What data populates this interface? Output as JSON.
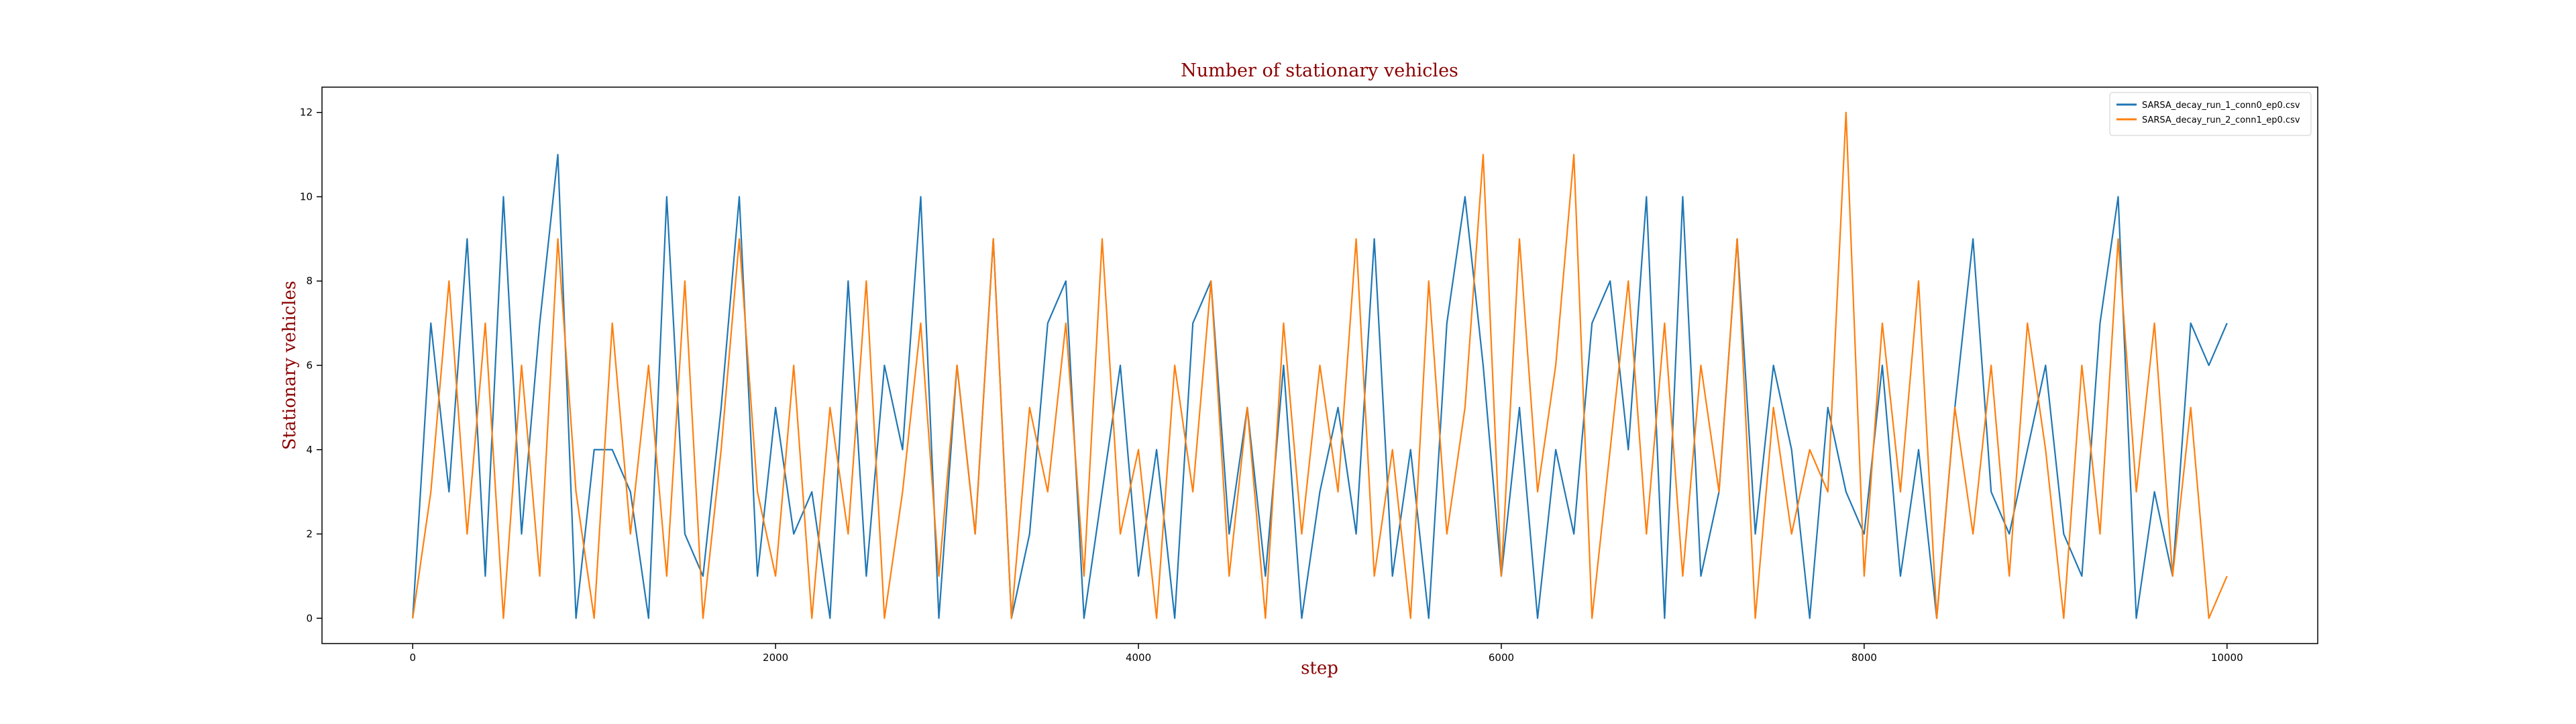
{
  "chart_data": {
    "type": "line",
    "title": "Number of stationary vehicles",
    "xlabel": "step",
    "ylabel": "Stationary vehicles",
    "x": [
      0,
      100,
      200,
      300,
      400,
      500,
      600,
      700,
      800,
      900,
      1000,
      1100,
      1200,
      1300,
      1400,
      1500,
      1600,
      1700,
      1800,
      1900,
      2000,
      2100,
      2200,
      2300,
      2400,
      2500,
      2600,
      2700,
      2800,
      2900,
      3000,
      3100,
      3200,
      3300,
      3400,
      3500,
      3600,
      3700,
      3800,
      3900,
      4000,
      4100,
      4200,
      4300,
      4400,
      4500,
      4600,
      4700,
      4800,
      4900,
      5000,
      5100,
      5200,
      5300,
      5400,
      5500,
      5600,
      5700,
      5800,
      5900,
      6000,
      6100,
      6200,
      6300,
      6400,
      6500,
      6600,
      6700,
      6800,
      6900,
      7000,
      7100,
      7200,
      7300,
      7400,
      7500,
      7600,
      7700,
      7800,
      7900,
      8000,
      8100,
      8200,
      8300,
      8400,
      8500,
      8600,
      8700,
      8800,
      8900,
      9000,
      9100,
      9200,
      9300,
      9400,
      9500,
      9600,
      9700,
      9800,
      9900,
      10000
    ],
    "series": [
      {
        "name": "SARSA_decay_run_1_conn0_ep0.csv",
        "color": "#1f77b4",
        "values": [
          0,
          7,
          3,
          9,
          1,
          10,
          2,
          7,
          11,
          0,
          4,
          4,
          3,
          0,
          10,
          2,
          1,
          5,
          10,
          1,
          5,
          2,
          3,
          0,
          8,
          1,
          6,
          4,
          10,
          0,
          6,
          2,
          9,
          0,
          2,
          7,
          8,
          0,
          3,
          6,
          1,
          4,
          0,
          7,
          8,
          2,
          5,
          1,
          6,
          0,
          3,
          5,
          2,
          9,
          1,
          4,
          0,
          7,
          10,
          6,
          1,
          5,
          0,
          4,
          2,
          7,
          8,
          4,
          10,
          0,
          10,
          1,
          3,
          9,
          2,
          6,
          4,
          0,
          5,
          3,
          2,
          6,
          1,
          4,
          0,
          5,
          9,
          3,
          2,
          4,
          6,
          2,
          1,
          7,
          10,
          0,
          3,
          1,
          7,
          6,
          7
        ]
      },
      {
        "name": "SARSA_decay_run_2_conn1_ep0.csv",
        "color": "#ff7f0e",
        "values": [
          0,
          3,
          8,
          2,
          7,
          0,
          6,
          1,
          9,
          3,
          0,
          7,
          2,
          6,
          1,
          8,
          0,
          4,
          9,
          3,
          1,
          6,
          0,
          5,
          2,
          8,
          0,
          3,
          7,
          1,
          6,
          2,
          9,
          0,
          5,
          3,
          7,
          1,
          9,
          2,
          4,
          0,
          6,
          3,
          8,
          1,
          5,
          0,
          7,
          2,
          6,
          3,
          9,
          1,
          4,
          0,
          8,
          2,
          5,
          11,
          1,
          9,
          3,
          6,
          11,
          0,
          4,
          8,
          2,
          7,
          1,
          6,
          3,
          9,
          0,
          5,
          2,
          4,
          3,
          12,
          1,
          7,
          3,
          8,
          0,
          5,
          2,
          6,
          1,
          7,
          4,
          0,
          6,
          2,
          9,
          3,
          7,
          1,
          5,
          0,
          1
        ]
      }
    ],
    "xlim": [
      -500,
      10500
    ],
    "ylim": [
      -0.6,
      12.6
    ],
    "xticks": [
      0,
      2000,
      4000,
      6000,
      8000,
      10000
    ],
    "yticks": [
      0,
      2,
      4,
      6,
      8,
      10,
      12
    ],
    "legend": "upper right"
  }
}
